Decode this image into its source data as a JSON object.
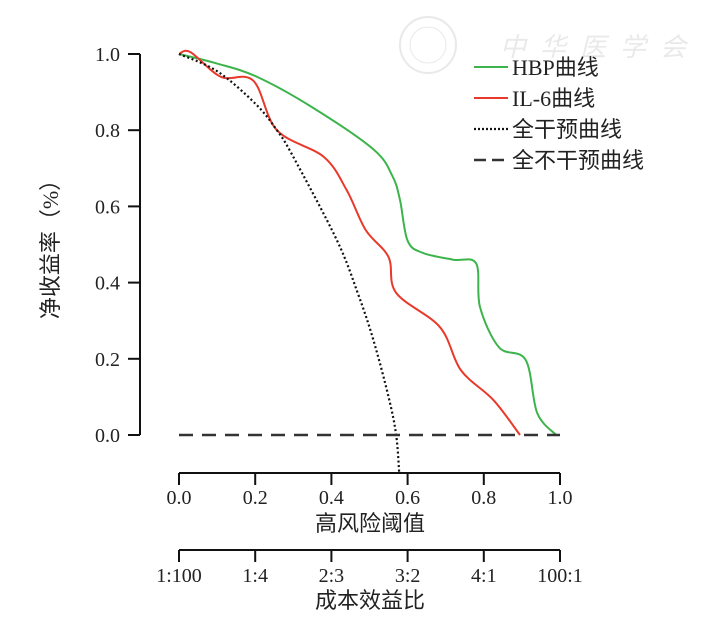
{
  "chart_data": {
    "type": "line",
    "title": "",
    "ylabel": "净收益率（%）",
    "xlabel": "高风险阈值",
    "xlabel2": "成本效益比",
    "xlim": [
      0,
      1
    ],
    "ylim": [
      0,
      1
    ],
    "xticks": [
      "0.0",
      "0.2",
      "0.4",
      "0.6",
      "0.8",
      "1.0"
    ],
    "xtick_values": [
      0,
      0.2,
      0.4,
      0.6,
      0.8,
      1.0
    ],
    "x2ticks": [
      "1:100",
      "1:4",
      "2:3",
      "3:2",
      "4:1",
      "100:1"
    ],
    "yticks": [
      "0.0",
      "0.2",
      "0.4",
      "0.6",
      "0.8",
      "1.0"
    ],
    "ytick_values": [
      0,
      0.2,
      0.4,
      0.6,
      0.8,
      1.0
    ],
    "legend_position": "top-right",
    "series": [
      {
        "name": "HBP曲线",
        "color": "#3cb44b",
        "style": "solid",
        "points": [
          [
            0,
            1.0
          ],
          [
            0.1,
            0.975
          ],
          [
            0.205,
            0.94
          ],
          [
            0.35,
            0.86
          ],
          [
            0.51,
            0.75
          ],
          [
            0.56,
            0.68
          ],
          [
            0.58,
            0.617
          ],
          [
            0.6,
            0.51
          ],
          [
            0.64,
            0.478
          ],
          [
            0.72,
            0.46
          ],
          [
            0.78,
            0.45
          ],
          [
            0.79,
            0.336
          ],
          [
            0.84,
            0.23
          ],
          [
            0.91,
            0.197
          ],
          [
            0.94,
            0.058
          ],
          [
            0.99,
            0.0
          ]
        ]
      },
      {
        "name": "IL-6曲线",
        "color": "#e8392b",
        "style": "solid",
        "points": [
          [
            0,
            1.0
          ],
          [
            0.03,
            1.005
          ],
          [
            0.11,
            0.94
          ],
          [
            0.195,
            0.93
          ],
          [
            0.257,
            0.8
          ],
          [
            0.38,
            0.73
          ],
          [
            0.44,
            0.643
          ],
          [
            0.49,
            0.538
          ],
          [
            0.55,
            0.467
          ],
          [
            0.57,
            0.373
          ],
          [
            0.685,
            0.283
          ],
          [
            0.74,
            0.17
          ],
          [
            0.825,
            0.092
          ],
          [
            0.895,
            0.0
          ]
        ]
      },
      {
        "name": "全干预曲线",
        "color": "#111111",
        "style": "dotted",
        "points": [
          [
            0,
            1.0
          ],
          [
            0.1,
            0.955
          ],
          [
            0.2,
            0.87
          ],
          [
            0.257,
            0.8
          ],
          [
            0.3,
            0.73
          ],
          [
            0.415,
            0.51
          ],
          [
            0.47,
            0.37
          ],
          [
            0.51,
            0.25
          ],
          [
            0.55,
            0.1
          ],
          [
            0.57,
            0.0
          ],
          [
            0.578,
            -0.1
          ]
        ]
      },
      {
        "name": "全不干预曲线",
        "color": "#333333",
        "style": "dashed",
        "points": [
          [
            0,
            0
          ],
          [
            1,
            0
          ]
        ]
      }
    ]
  },
  "watermark": "中华医学会"
}
